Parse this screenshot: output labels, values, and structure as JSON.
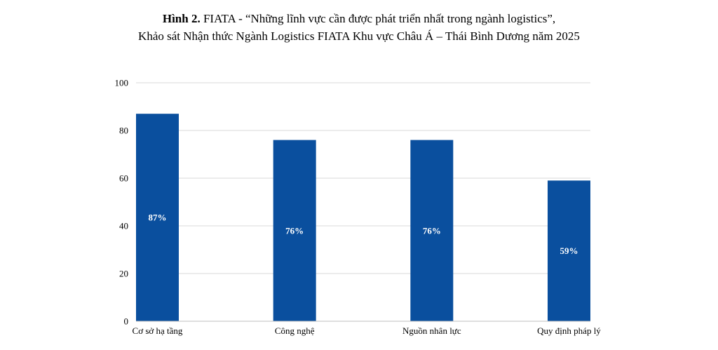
{
  "title": {
    "prefix": "Hình 2.",
    "line1": "FIATA - “Những lĩnh vực cần được phát triển nhất trong ngành logistics”,",
    "line2": "Khảo sát Nhận thức Ngành Logistics FIATA Khu vực Châu Á – Thái Bình Dương năm 2025"
  },
  "chart_data": {
    "type": "bar",
    "title": "Hình 2. FIATA - “Những lĩnh vực cần được phát triển nhất trong ngành logistics”, Khảo sát Nhận thức Ngành Logistics FIATA Khu vực Châu Á – Thái Bình Dương năm 2025",
    "categories": [
      "Cơ sở hạ tầng",
      "Công nghệ",
      "Nguồn nhân lực",
      "Quy định pháp lý"
    ],
    "values": [
      87,
      76,
      76,
      59
    ],
    "data_labels": [
      "87%",
      "76%",
      "76%",
      "59%"
    ],
    "ylim": [
      0,
      100
    ],
    "yticks": [
      0,
      20,
      40,
      60,
      80,
      100
    ],
    "xlabel": "",
    "ylabel": "",
    "grid": true,
    "bar_color": "#0a4f9e"
  }
}
